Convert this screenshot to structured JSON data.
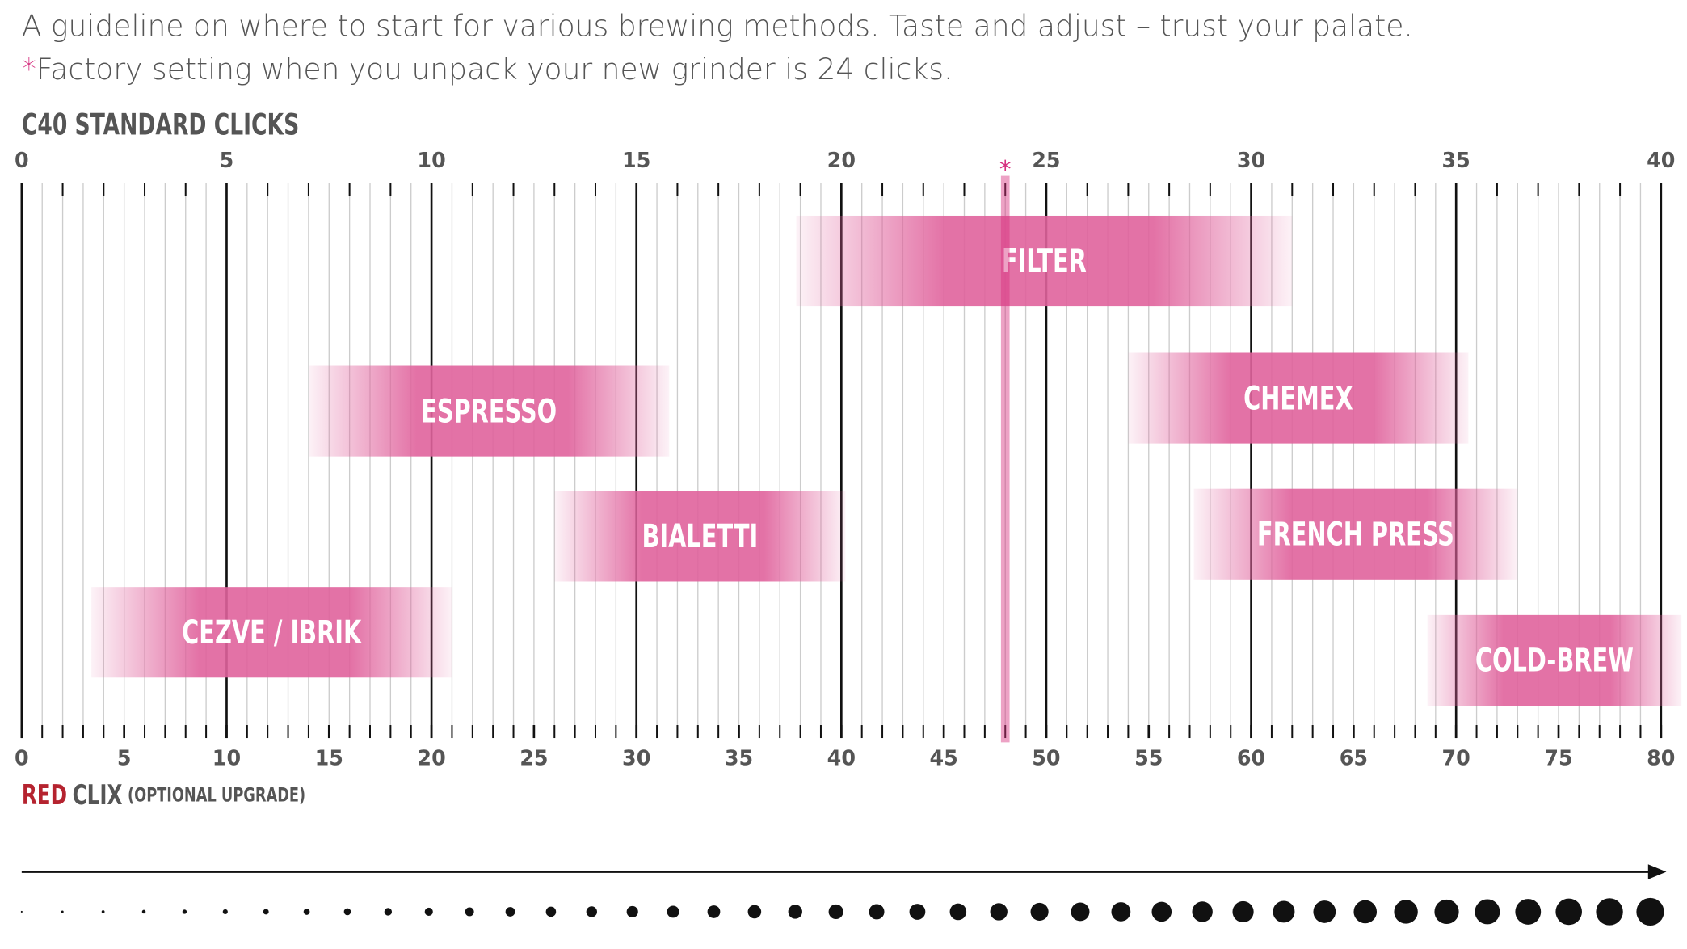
{
  "chart_data": {
    "type": "range",
    "notes": [
      "A guideline on where to start for various brewing methods. Taste and adjust – trust your palate.",
      "Factory setting when you unpack your new grinder is 24 clicks."
    ],
    "marker_symbol": "*",
    "xlabel": "C40 STANDARD CLICKS",
    "xlim": [
      0,
      40
    ],
    "xticks": [
      0,
      5,
      10,
      15,
      20,
      25,
      30,
      35,
      40
    ],
    "x2label": [
      "RED",
      "CLIX",
      "(OPTIONAL UPGRADE)"
    ],
    "x2lim": [
      0,
      80
    ],
    "x2ticks": [
      0,
      5,
      10,
      15,
      20,
      25,
      30,
      35,
      40,
      45,
      50,
      55,
      60,
      65,
      70,
      75,
      80
    ],
    "marker": 24,
    "marker_color": "#d6307f",
    "color": "#e0629c",
    "categories": [
      "FILTER",
      "ESPRESSO",
      "CHEMEX",
      "BIALETTI",
      "FRENCH PRESS",
      "CEZVE / IBRIK",
      "COLD-BREW"
    ],
    "starts": [
      18.9,
      7,
      27,
      13,
      28.6,
      1.7,
      34.3
    ],
    "ends": [
      31,
      15.8,
      35.3,
      20.1,
      36.5,
      10.5,
      40.5
    ]
  }
}
